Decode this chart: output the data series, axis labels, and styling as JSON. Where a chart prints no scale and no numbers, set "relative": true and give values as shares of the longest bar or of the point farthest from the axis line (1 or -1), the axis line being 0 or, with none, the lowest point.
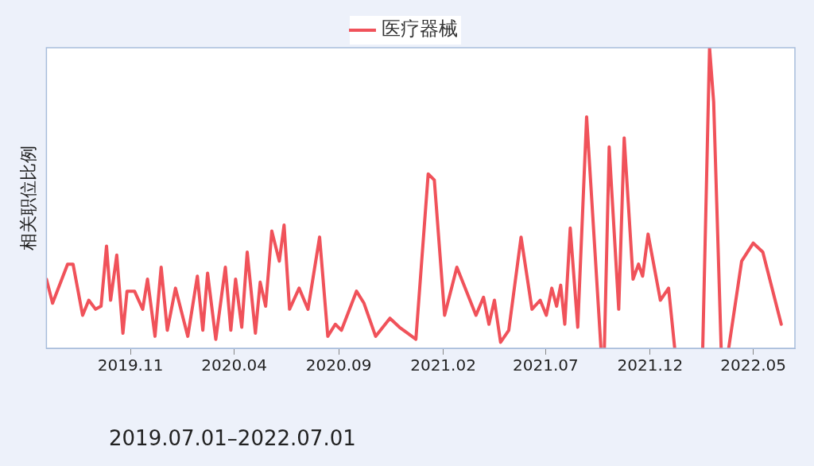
{
  "chart_data": {
    "type": "line",
    "ylabel": "相关职位比例",
    "legend": "top",
    "relative": true,
    "marker": "none",
    "line_style": "solid",
    "grid": false,
    "annotations": [
      "2019.07.01–2022.07.01"
    ],
    "xlim": [
      "2019-07-01",
      "2022-07-01"
    ],
    "xticks": [
      {
        "value": "2019-11-01",
        "label": "2019.11"
      },
      {
        "value": "2020-04-01",
        "label": "2020.04"
      },
      {
        "value": "2020-09-01",
        "label": "2020.09"
      },
      {
        "value": "2021-02-01",
        "label": "2021.02"
      },
      {
        "value": "2021-07-01",
        "label": "2021.07"
      },
      {
        "value": "2021-12-01",
        "label": "2021.12"
      },
      {
        "value": "2022-05-01",
        "label": "2022.05"
      }
    ],
    "x": [
      "2019-07-01",
      "2019-07-10",
      "2019-08-01",
      "2019-08-09",
      "2019-08-23",
      "2019-09-01",
      "2019-09-11",
      "2019-09-19",
      "2019-09-27",
      "2019-10-03",
      "2019-10-12",
      "2019-10-21",
      "2019-10-27",
      "2019-11-07",
      "2019-11-19",
      "2019-11-26",
      "2019-12-07",
      "2019-12-16",
      "2019-12-25",
      "2020-01-06",
      "2020-01-24",
      "2020-02-07",
      "2020-02-15",
      "2020-02-22",
      "2020-03-05",
      "2020-03-19",
      "2020-03-27",
      "2020-04-03",
      "2020-04-12",
      "2020-04-20",
      "2020-05-02",
      "2020-05-09",
      "2020-05-17",
      "2020-05-26",
      "2020-06-06",
      "2020-06-13",
      "2020-06-21",
      "2020-07-05",
      "2020-07-18",
      "2020-08-04",
      "2020-08-16",
      "2020-08-27",
      "2020-09-05",
      "2020-09-27",
      "2020-10-08",
      "2020-10-25",
      "2020-11-15",
      "2020-11-29",
      "2020-12-23",
      "2021-01-10",
      "2021-01-19",
      "2021-02-03",
      "2021-02-21",
      "2021-03-21",
      "2021-04-01",
      "2021-04-09",
      "2021-04-17",
      "2021-04-26",
      "2021-05-08",
      "2021-05-26",
      "2021-06-11",
      "2021-06-23",
      "2021-07-02",
      "2021-07-10",
      "2021-07-17",
      "2021-07-23",
      "2021-07-29",
      "2021-08-06",
      "2021-08-17",
      "2021-08-30",
      "2021-09-20",
      "2021-09-22",
      "2021-09-25",
      "2021-10-02",
      "2021-10-16",
      "2021-10-24",
      "2021-11-06",
      "2021-11-14",
      "2021-11-20",
      "2021-11-28",
      "2021-12-16",
      "2021-12-28",
      "2022-01-06",
      "2022-01-25",
      "2022-02-16",
      "2022-02-26",
      "2022-03-04",
      "2022-03-15",
      "2022-03-18",
      "2022-03-26",
      "2022-04-14",
      "2022-05-01",
      "2022-05-15",
      "2022-06-11"
    ],
    "series": [
      {
        "name": "医疗器械",
        "color": "#f0525a",
        "values": [
          0.23,
          0.15,
          0.28,
          0.28,
          0.11,
          0.16,
          0.13,
          0.14,
          0.34,
          0.16,
          0.31,
          0.05,
          0.19,
          0.19,
          0.13,
          0.23,
          0.04,
          0.27,
          0.06,
          0.2,
          0.04,
          0.24,
          0.06,
          0.25,
          0.03,
          0.27,
          0.06,
          0.23,
          0.07,
          0.32,
          0.05,
          0.22,
          0.14,
          0.39,
          0.29,
          0.41,
          0.13,
          0.2,
          0.13,
          0.37,
          0.04,
          0.08,
          0.06,
          0.19,
          0.15,
          0.04,
          0.1,
          0.07,
          0.03,
          0.58,
          0.56,
          0.11,
          0.27,
          0.11,
          0.17,
          0.08,
          0.16,
          0.02,
          0.06,
          0.37,
          0.13,
          0.16,
          0.11,
          0.2,
          0.14,
          0.21,
          0.08,
          0.4,
          0.07,
          0.77,
          0,
          null,
          0,
          0.67,
          0.13,
          0.7,
          0.23,
          0.28,
          0.24,
          0.38,
          0.16,
          0.2,
          0,
          null,
          0,
          1,
          0.82,
          0,
          null,
          0,
          0.29,
          0.35,
          0.32,
          0.08
        ]
      }
    ]
  }
}
